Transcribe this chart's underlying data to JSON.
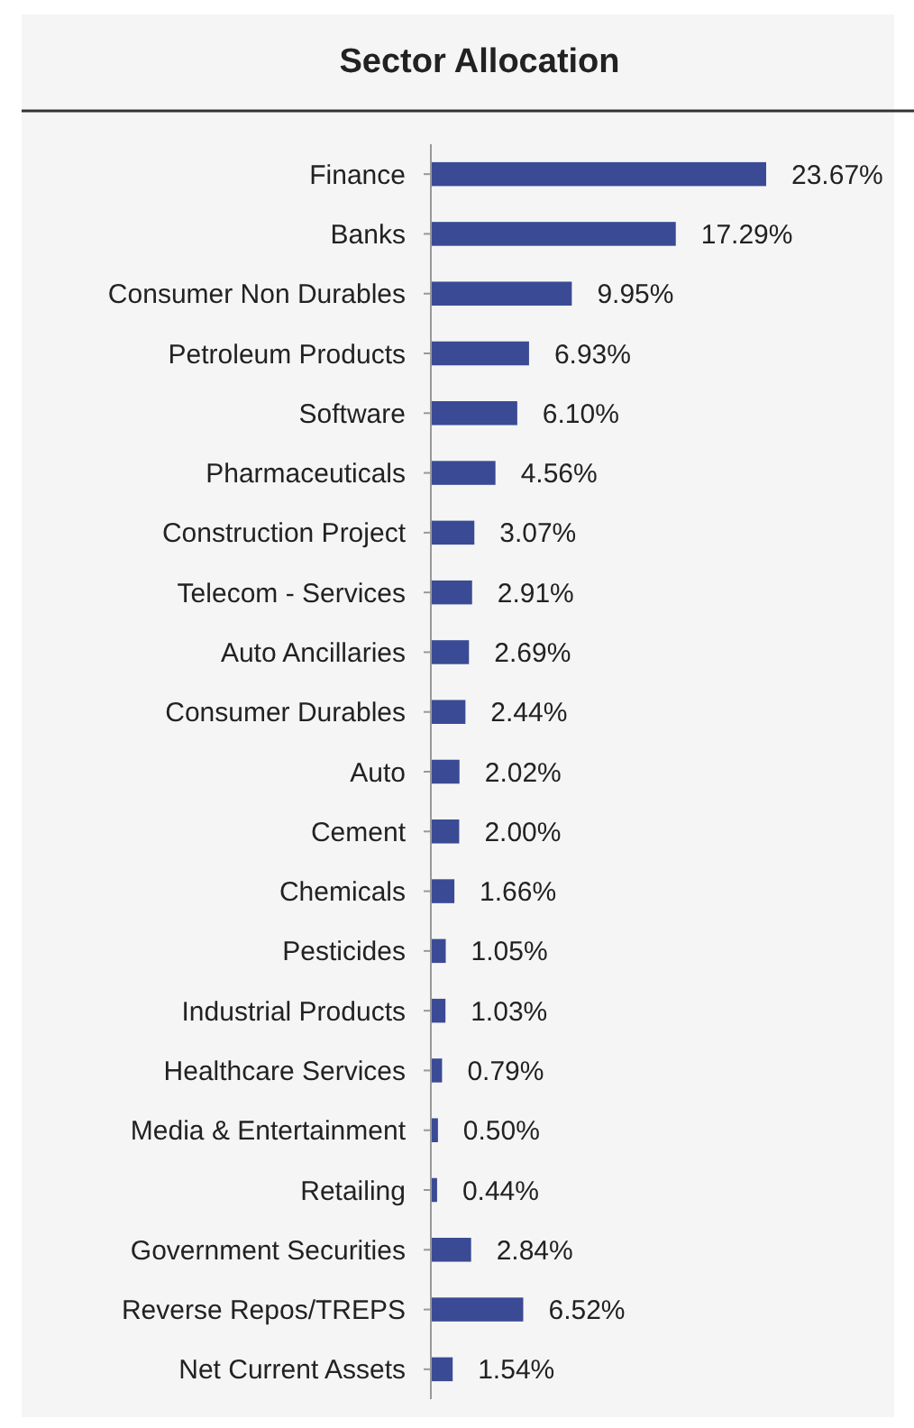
{
  "chart_data": {
    "type": "bar",
    "orientation": "horizontal",
    "title": "Sector Allocation",
    "data_labels": true,
    "color": "#3a4a94",
    "categories": [
      "Finance",
      "Banks",
      "Consumer Non Durables",
      "Petroleum Products",
      "Software",
      "Pharmaceuticals",
      "Construction Project",
      "Telecom - Services",
      "Auto Ancillaries",
      "Consumer Durables",
      "Auto",
      "Cement",
      "Chemicals",
      "Pesticides",
      "Industrial Products",
      "Healthcare Services",
      "Media & Entertainment",
      "Retailing",
      "Government Securities",
      "Reverse Repos/TREPS",
      "Net Current Assets"
    ],
    "values": [
      23.67,
      17.29,
      9.95,
      6.93,
      6.1,
      4.56,
      3.07,
      2.91,
      2.69,
      2.44,
      2.02,
      2.0,
      1.66,
      1.05,
      1.03,
      0.79,
      0.5,
      0.44,
      2.84,
      6.52,
      1.54
    ],
    "value_labels": [
      "23.67%",
      "17.29%",
      "9.95%",
      "6.93%",
      "6.10%",
      "4.56%",
      "3.07%",
      "2.91%",
      "2.69%",
      "2.44%",
      "2.02%",
      "2.00%",
      "1.66%",
      "1.05%",
      "1.03%",
      "0.79%",
      "0.50%",
      "0.44%",
      "2.84%",
      "6.52%",
      "1.54%"
    ]
  }
}
